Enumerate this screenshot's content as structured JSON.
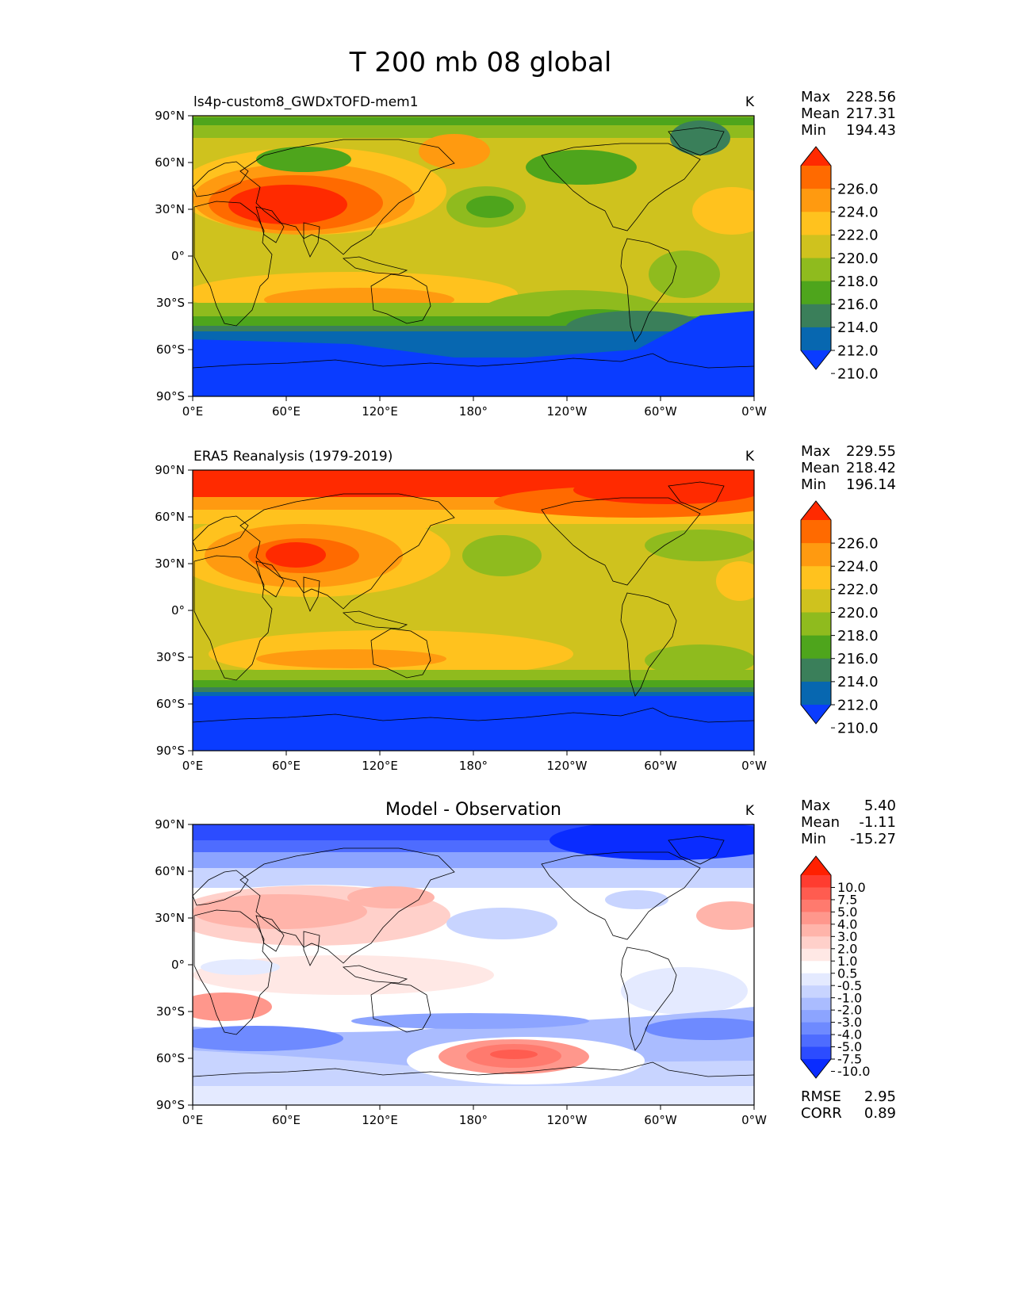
{
  "title": "T 200 mb 08 global",
  "lon_ticks": [
    "0°E",
    "60°E",
    "120°E",
    "180°",
    "120°W",
    "60°W",
    "0°W"
  ],
  "lat_ticks": [
    "90°N",
    "60°N",
    "30°N",
    "0°",
    "30°S",
    "60°S",
    "90°S"
  ],
  "chart_data": [
    {
      "type": "heatmap",
      "title": "ls4p-custom8_GWDxTOFD-mem1",
      "units": "K",
      "stats": {
        "max_label": "Max",
        "max": "228.56",
        "mean_label": "Mean",
        "mean": "217.31",
        "min_label": "Min",
        "min": "194.43"
      },
      "colorbar": {
        "labels": [
          "226.0",
          "224.0",
          "222.0",
          "220.0",
          "218.0",
          "216.0",
          "214.0",
          "212.0",
          "210.0"
        ],
        "colors": [
          "#ff2a00",
          "#ff6a00",
          "#ff9a10",
          "#ffc21e",
          "#cfc21e",
          "#8fbb1e",
          "#4ea51c",
          "#3a7f5a",
          "#0767b0",
          "#0a3cff"
        ]
      }
    },
    {
      "type": "heatmap",
      "title": "ERA5 Reanalysis (1979-2019)",
      "units": "K",
      "stats": {
        "max_label": "Max",
        "max": "229.55",
        "mean_label": "Mean",
        "mean": "218.42",
        "min_label": "Min",
        "min": "196.14"
      },
      "colorbar": {
        "labels": [
          "226.0",
          "224.0",
          "222.0",
          "220.0",
          "218.0",
          "216.0",
          "214.0",
          "212.0",
          "210.0"
        ],
        "colors": [
          "#ff2a00",
          "#ff6a00",
          "#ff9a10",
          "#ffc21e",
          "#cfc21e",
          "#8fbb1e",
          "#4ea51c",
          "#3a7f5a",
          "#0767b0",
          "#0a3cff"
        ]
      }
    },
    {
      "type": "heatmap",
      "title": "Model - Observation",
      "units": "K",
      "stats": {
        "max_label": "Max",
        "max": "5.40",
        "mean_label": "Mean",
        "mean": "-1.11",
        "min_label": "Min",
        "min": "-15.27"
      },
      "colorbar": {
        "labels": [
          "10.0",
          "7.5",
          "5.0",
          "4.0",
          "3.0",
          "2.0",
          "1.0",
          "0.5",
          "-0.5",
          "-1.0",
          "-2.0",
          "-3.0",
          "-4.0",
          "-5.0",
          "-7.5",
          "-10.0"
        ],
        "colors": [
          "#ff2000",
          "#ff3c30",
          "#ff5c50",
          "#ff7a6e",
          "#ff978c",
          "#ffb4aa",
          "#ffd0ca",
          "#ffe8e5",
          "#ffffff",
          "#e4eaff",
          "#c8d4ff",
          "#aabcff",
          "#8ca4ff",
          "#6e8aff",
          "#4e6cff",
          "#2c4cff",
          "#0a2cff"
        ]
      },
      "metrics": {
        "rmse_label": "RMSE",
        "rmse": "2.95",
        "corr_label": "CORR",
        "corr": "0.89"
      }
    }
  ]
}
